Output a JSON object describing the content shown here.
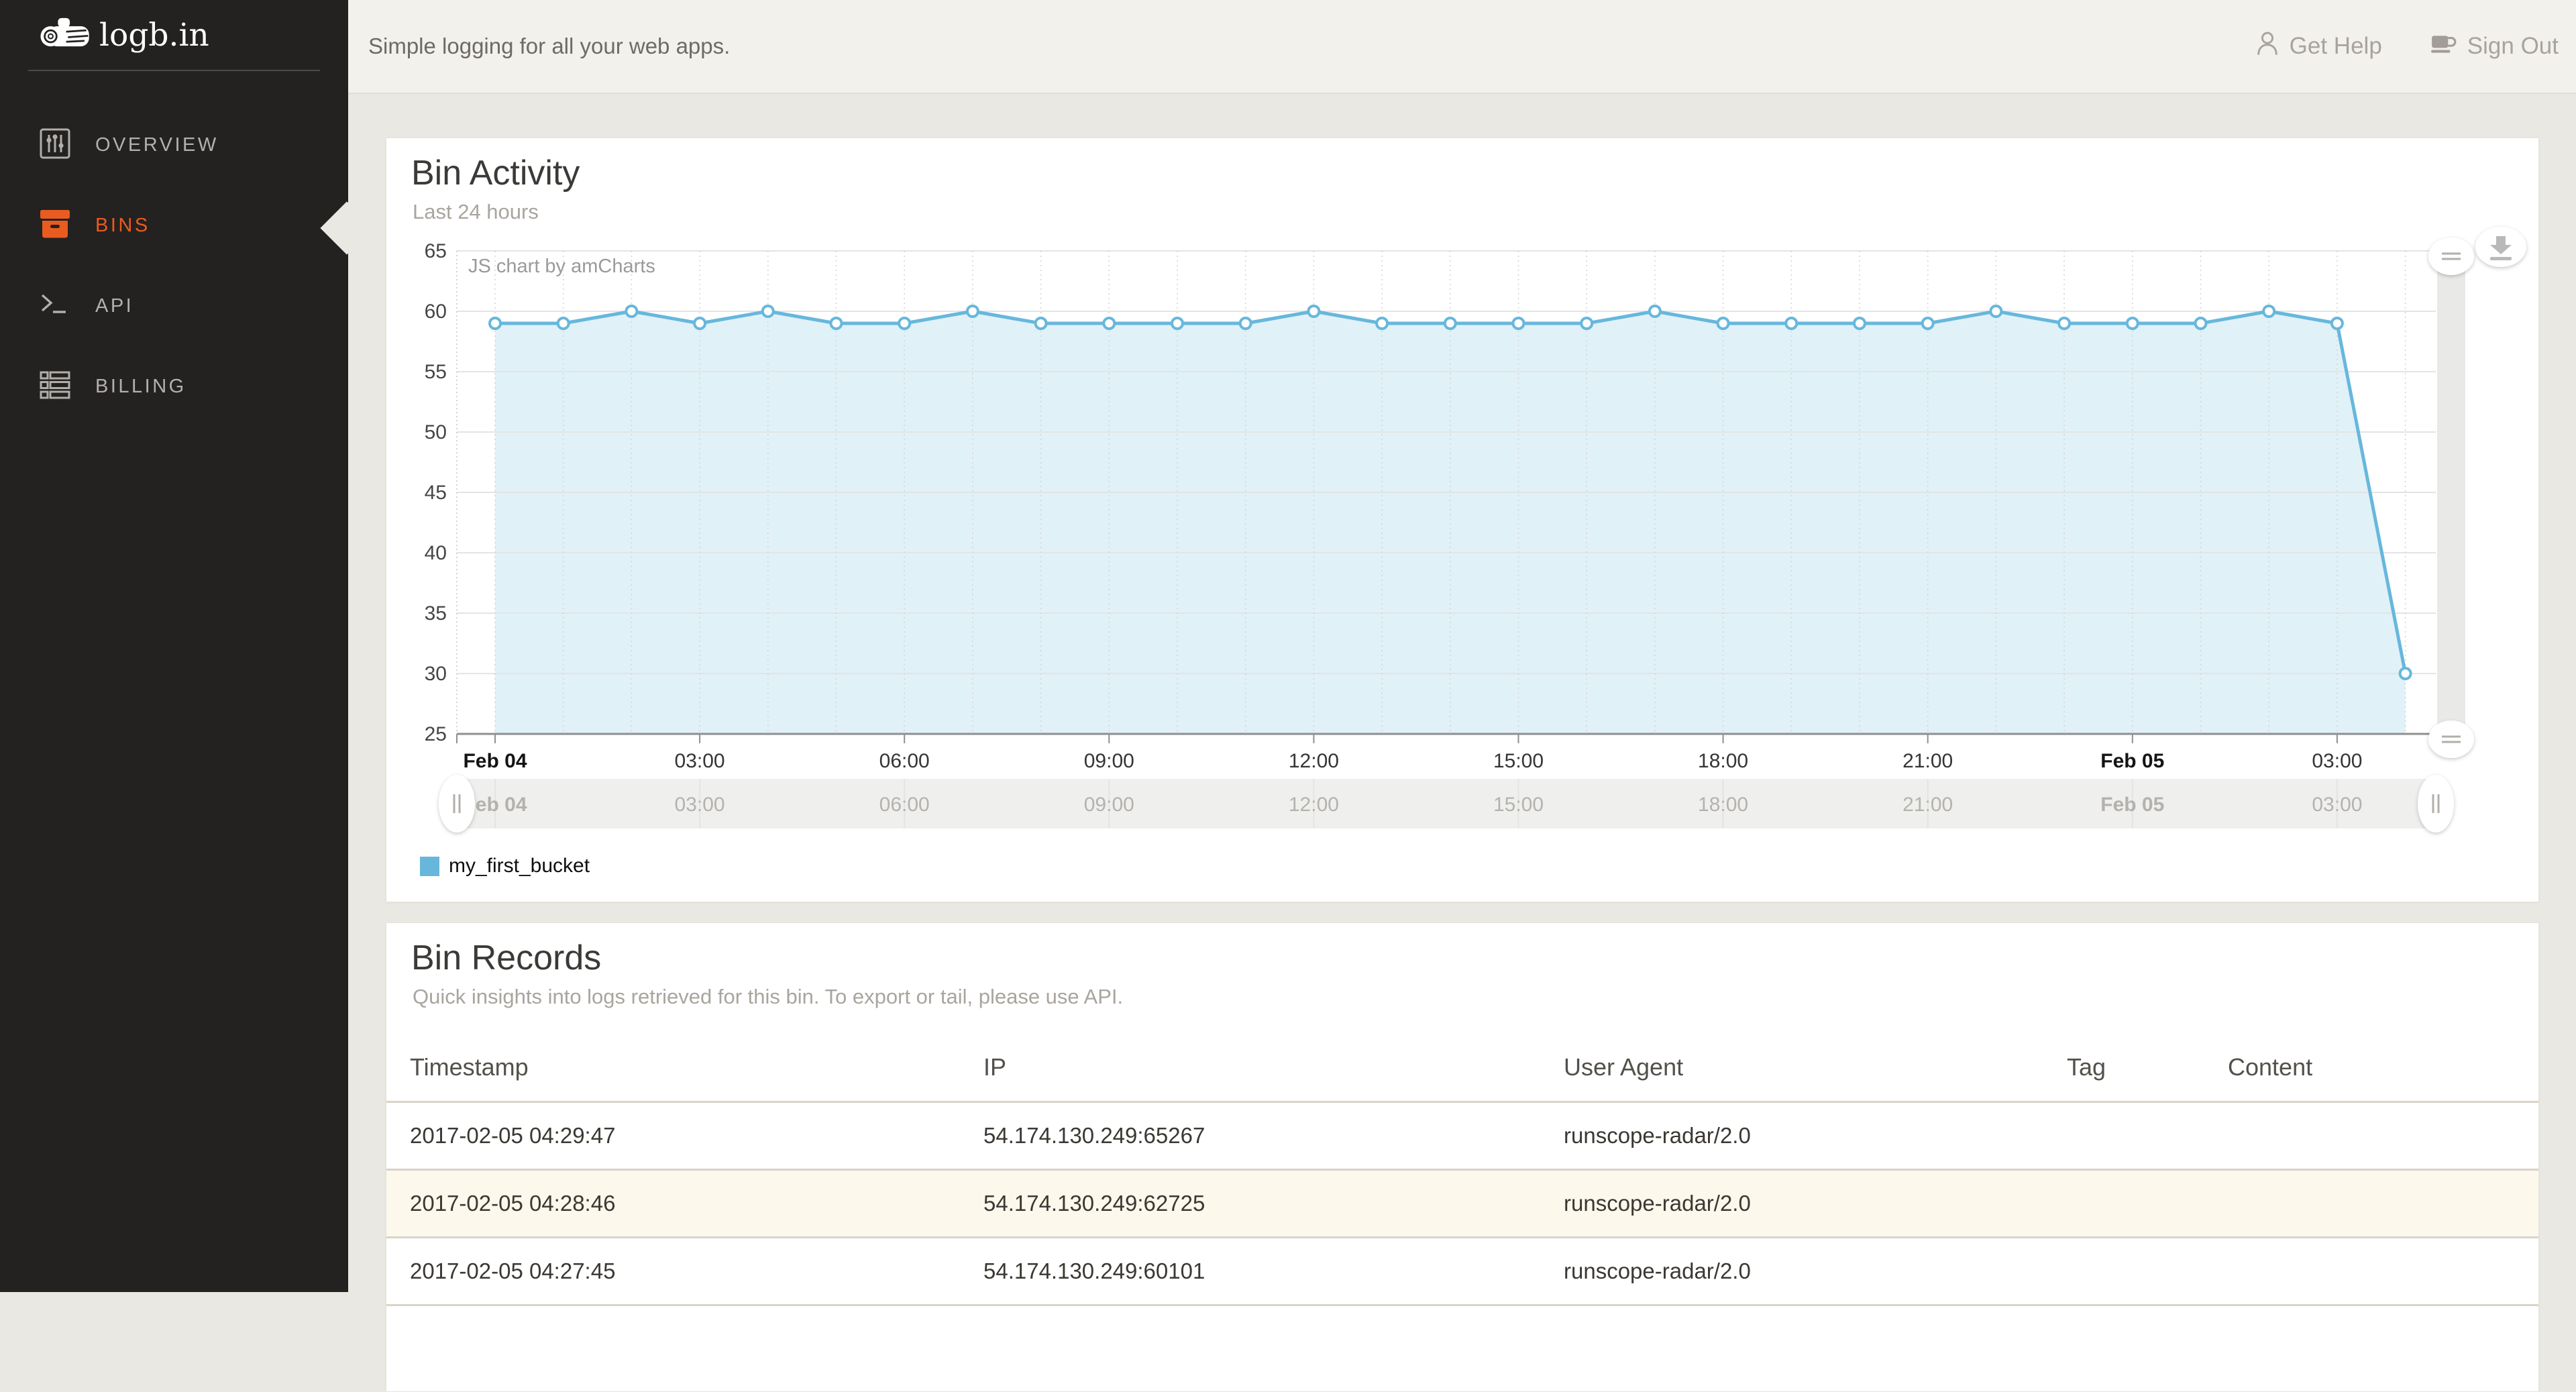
{
  "sidebar": {
    "logo": "logb.in",
    "items": [
      {
        "label": "OVERVIEW",
        "icon": "sliders-icon",
        "active": false
      },
      {
        "label": "BINS",
        "icon": "box-icon",
        "active": true
      },
      {
        "label": "API",
        "icon": "terminal-icon",
        "active": false
      },
      {
        "label": "BILLING",
        "icon": "billing-icon",
        "active": false
      }
    ]
  },
  "topbar": {
    "tagline": "Simple logging for all your web apps.",
    "get_help": "Get Help",
    "sign_out": "Sign Out"
  },
  "bin_activity": {
    "title": "Bin Activity",
    "subtitle": "Last 24 hours",
    "legend": "my_first_bucket",
    "colors": {
      "accent": "#ea5b20",
      "line": "#67b7dc",
      "fill": "rgba(103,183,220,0.20)",
      "legend_swatch": "#67b7dc"
    }
  },
  "chart_data": {
    "type": "area",
    "title": "Bin Activity",
    "watermark": "JS chart by amCharts",
    "series": [
      {
        "name": "my_first_bucket",
        "values": [
          59,
          59,
          60,
          59,
          60,
          59,
          59,
          60,
          59,
          59,
          59,
          59,
          60,
          59,
          59,
          59,
          59,
          60,
          59,
          59,
          59,
          59,
          60,
          59,
          59,
          59,
          60,
          59,
          30
        ]
      }
    ],
    "x_unit": "hour",
    "x_start_label": "Feb 04",
    "x_ticks": [
      {
        "hour": 0,
        "label": "Feb 04",
        "bold": true
      },
      {
        "hour": 3,
        "label": "03:00",
        "bold": false
      },
      {
        "hour": 6,
        "label": "06:00",
        "bold": false
      },
      {
        "hour": 9,
        "label": "09:00",
        "bold": false
      },
      {
        "hour": 12,
        "label": "12:00",
        "bold": false
      },
      {
        "hour": 15,
        "label": "15:00",
        "bold": false
      },
      {
        "hour": 18,
        "label": "18:00",
        "bold": false
      },
      {
        "hour": 21,
        "label": "21:00",
        "bold": false
      },
      {
        "hour": 24,
        "label": "Feb 05",
        "bold": true
      },
      {
        "hour": 27,
        "label": "03:00",
        "bold": false
      }
    ],
    "y_ticks": [
      25,
      30,
      35,
      40,
      45,
      50,
      55,
      60,
      65
    ],
    "ylim": [
      25,
      65
    ],
    "grid": {
      "horizontal": "solid",
      "vertical": "dashed"
    },
    "legend_position": "bottom"
  },
  "bin_records": {
    "title": "Bin Records",
    "subtitle": "Quick insights into logs retrieved for this bin. To export or tail, please use API.",
    "columns": [
      "Timestamp",
      "IP",
      "User Agent",
      "Tag",
      "Content"
    ],
    "rows": [
      {
        "timestamp": "2017-02-05 04:29:47",
        "ip": "54.174.130.249:65267",
        "user_agent": "runscope-radar/2.0",
        "tag": "",
        "content": ""
      },
      {
        "timestamp": "2017-02-05 04:28:46",
        "ip": "54.174.130.249:62725",
        "user_agent": "runscope-radar/2.0",
        "tag": "",
        "content": ""
      },
      {
        "timestamp": "2017-02-05 04:27:45",
        "ip": "54.174.130.249:60101",
        "user_agent": "runscope-radar/2.0",
        "tag": "",
        "content": ""
      }
    ]
  }
}
